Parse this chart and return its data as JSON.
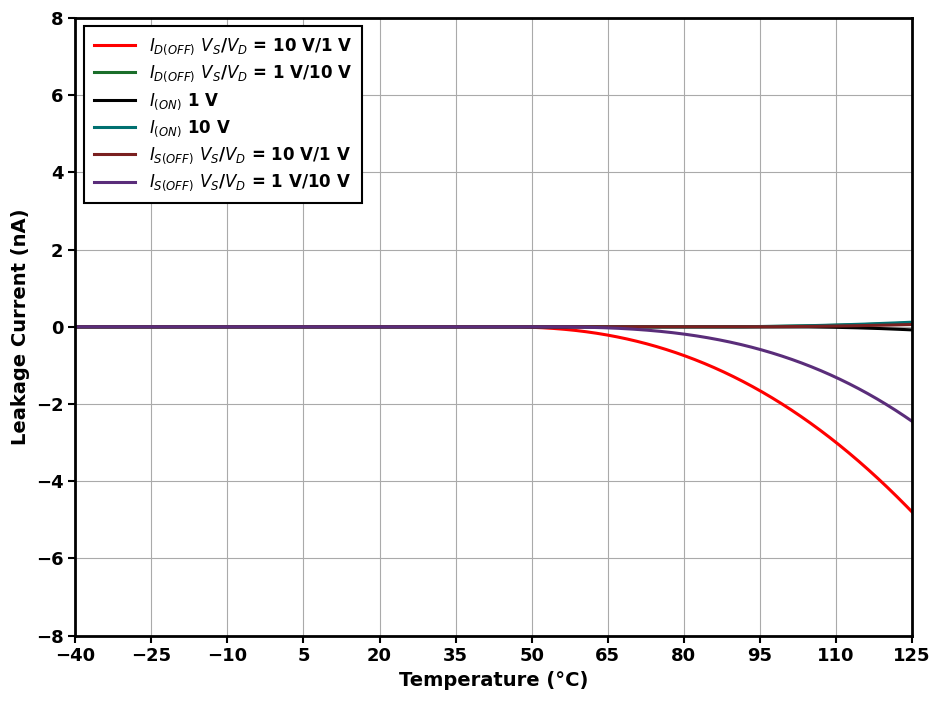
{
  "title": "",
  "xlabel": "Temperature (°C)",
  "ylabel": "Leakage Current (nA)",
  "xlim": [
    -40,
    125
  ],
  "ylim": [
    -8,
    8
  ],
  "xticks": [
    -40,
    -25,
    -10,
    5,
    20,
    35,
    50,
    65,
    80,
    95,
    110,
    125
  ],
  "yticks": [
    -8,
    -6,
    -4,
    -2,
    0,
    2,
    4,
    6,
    8
  ],
  "series": [
    {
      "label": "$I_{D(OFF)}$ $V_S$/$V_D$ = 10 V/1 V",
      "color": "#FF0000",
      "linewidth": 2.2
    },
    {
      "label": "$I_{D(OFF)}$ $V_S$/$V_D$ = 1 V/10 V",
      "color": "#1a6e2a",
      "linewidth": 2.2
    },
    {
      "label": "$I_{(ON)}$ 1 V",
      "color": "#000000",
      "linewidth": 2.2
    },
    {
      "label": "$I_{(ON)}$ 10 V",
      "color": "#007070",
      "linewidth": 2.2
    },
    {
      "label": "$I_{S(OFF)}$ $V_S$/$V_D$ = 10 V/1 V",
      "color": "#7a2020",
      "linewidth": 2.2
    },
    {
      "label": "$I_{S(OFF)}$ $V_S$/$V_D$ = 1 V/10 V",
      "color": "#5a2d7a",
      "linewidth": 2.2
    }
  ],
  "background_color": "#ffffff",
  "axis_fontsize": 14,
  "tick_fontsize": 13,
  "legend_fontsize": 12,
  "grid_color": "#aaaaaa",
  "grid_linewidth": 0.8,
  "spine_linewidth": 2.0
}
